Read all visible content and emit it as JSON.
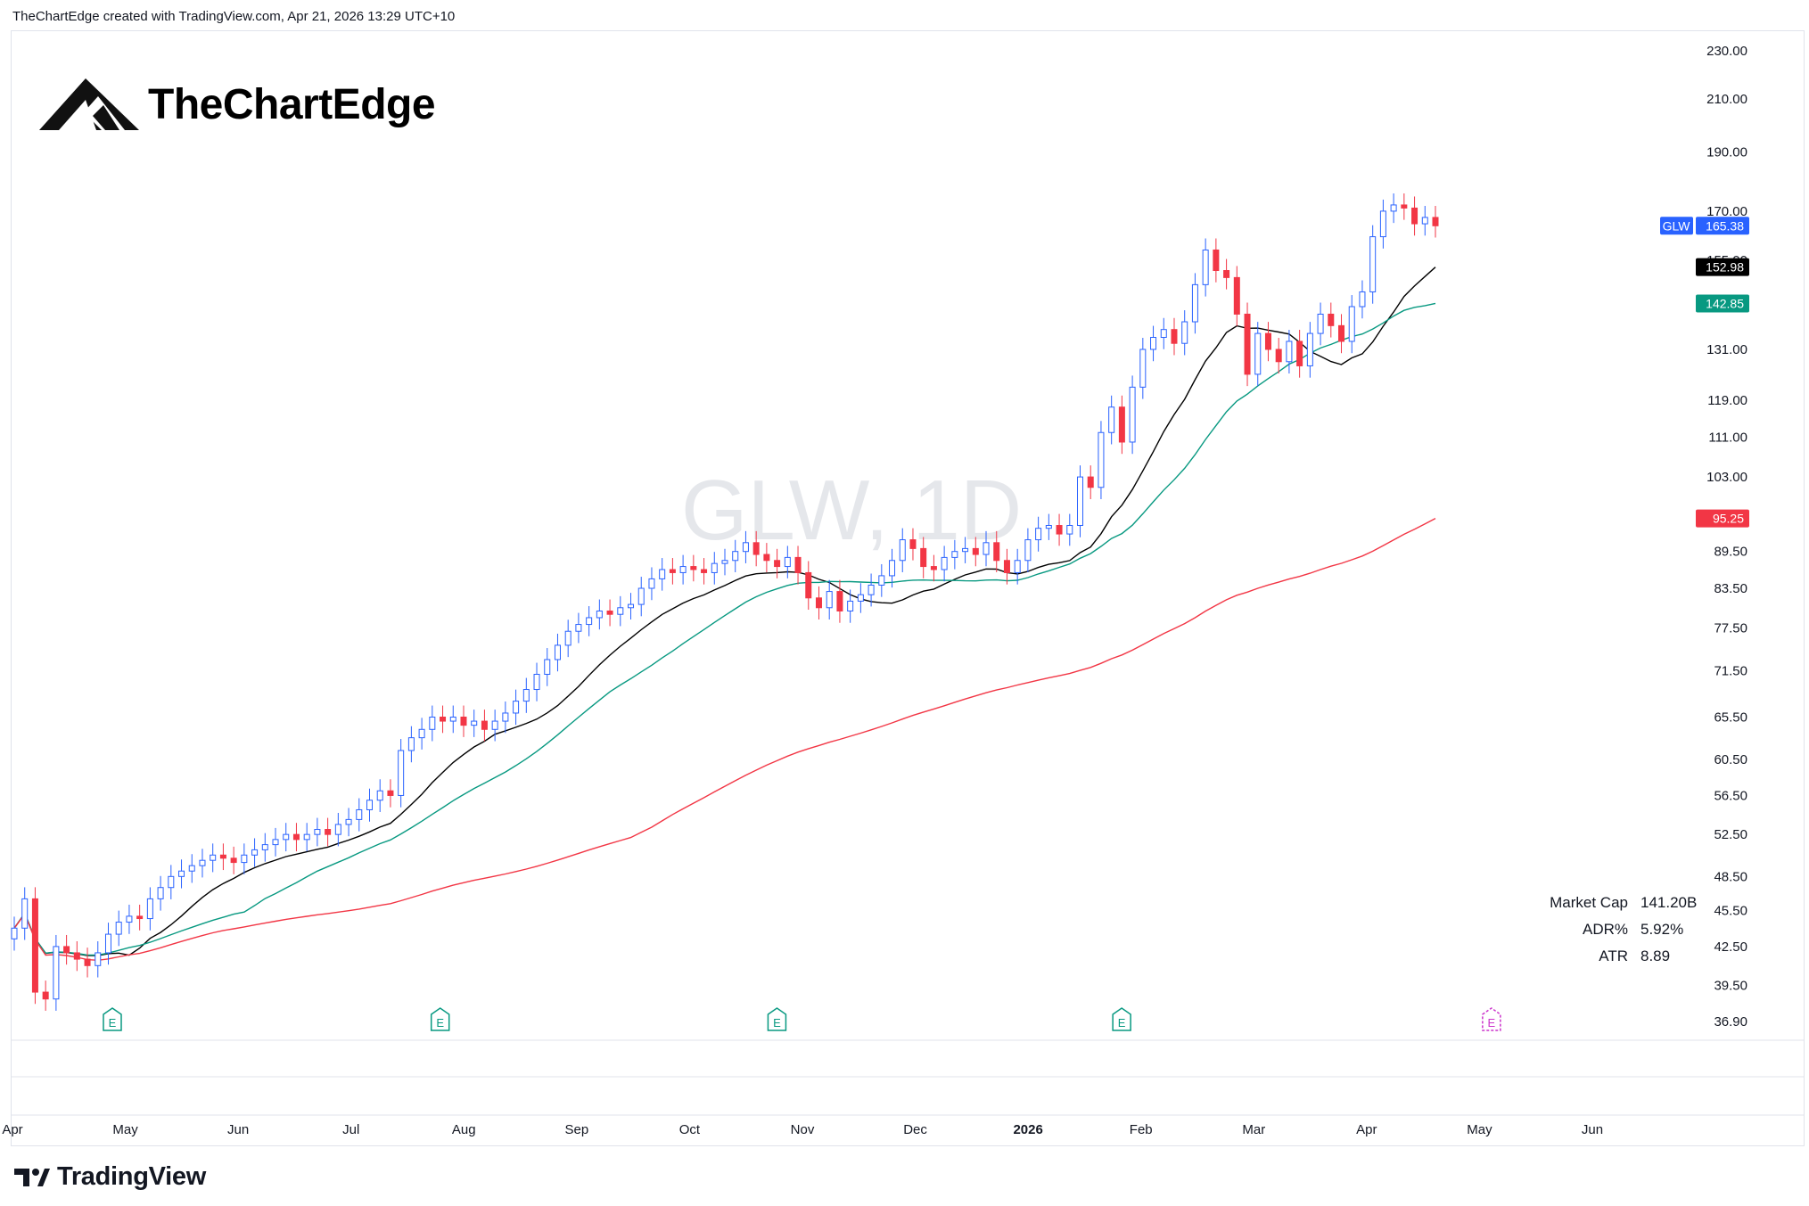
{
  "header": {
    "attribution": "TheChartEdge created with TradingView.com, Apr 21, 2026 13:29 UTC+10"
  },
  "brand": {
    "name": "TheChartEdge"
  },
  "footer": {
    "logo_text": "TradingView"
  },
  "watermark": "GLW, 1D",
  "stats": [
    {
      "label": "Market Cap",
      "value": "141.20B"
    },
    {
      "label": "ADR%",
      "value": "5.92%"
    },
    {
      "label": "ATR",
      "value": "8.89"
    }
  ],
  "colors": {
    "up": "#2962ff",
    "down": "#f23645",
    "ma_short": "#000000",
    "ma_mid": "#089981",
    "ma_long": "#f23645",
    "grid": "#e0e3eb",
    "earnings_past": "#089981",
    "earnings_future": "#cc33cc"
  },
  "chart_data": {
    "type": "candlestick",
    "symbol": "GLW",
    "interval": "1D",
    "y_scale": "log",
    "ylim": [
      36.9,
      230
    ],
    "y_ticks": [
      230.0,
      210.0,
      190.0,
      170.0,
      155.0,
      131.0,
      119.0,
      111.0,
      103.0,
      89.5,
      83.5,
      77.5,
      71.5,
      65.5,
      60.5,
      56.5,
      52.5,
      48.5,
      45.5,
      42.5,
      39.5,
      36.9
    ],
    "x_ticks": [
      "Apr",
      "May",
      "Jun",
      "Jul",
      "Aug",
      "Sep",
      "Oct",
      "Nov",
      "Dec",
      "2026",
      "Feb",
      "Mar",
      "Apr",
      "May",
      "Jun"
    ],
    "price_labels": [
      {
        "ticker": "GLW",
        "value": "165.38",
        "color": "#2962ff"
      },
      {
        "value": "152.98",
        "color": "#000000"
      },
      {
        "value": "142.85",
        "color": "#089981"
      },
      {
        "value": "95.25",
        "color": "#f23645"
      }
    ],
    "price_series": [
      [
        "Apr",
        44.0
      ],
      [
        "Apr",
        46.5
      ],
      [
        "Apr",
        39.0
      ],
      [
        "Apr",
        38.5
      ],
      [
        "Apr",
        42.5
      ],
      [
        "Apr",
        42.0
      ],
      [
        "Apr",
        41.5
      ],
      [
        "Apr",
        41.0
      ],
      [
        "May",
        42.0
      ],
      [
        "May",
        43.5
      ],
      [
        "May",
        44.5
      ],
      [
        "May",
        45.0
      ],
      [
        "May",
        44.8
      ],
      [
        "May",
        46.5
      ],
      [
        "May",
        47.5
      ],
      [
        "May",
        48.5
      ],
      [
        "May",
        49.0
      ],
      [
        "May",
        49.5
      ],
      [
        "Jun",
        50.0
      ],
      [
        "Jun",
        50.5
      ],
      [
        "Jun",
        50.2
      ],
      [
        "Jun",
        49.8
      ],
      [
        "Jun",
        50.5
      ],
      [
        "Jun",
        51.0
      ],
      [
        "Jun",
        51.5
      ],
      [
        "Jun",
        52.0
      ],
      [
        "Jun",
        52.5
      ],
      [
        "Jun",
        52.0
      ],
      [
        "Jul",
        52.5
      ],
      [
        "Jul",
        53.0
      ],
      [
        "Jul",
        52.5
      ],
      [
        "Jul",
        53.5
      ],
      [
        "Jul",
        54.0
      ],
      [
        "Jul",
        55.0
      ],
      [
        "Jul",
        56.0
      ],
      [
        "Jul",
        57.0
      ],
      [
        "Jul",
        56.5
      ],
      [
        "Aug",
        61.5
      ],
      [
        "Aug",
        63.0
      ],
      [
        "Aug",
        64.0
      ],
      [
        "Aug",
        65.5
      ],
      [
        "Aug",
        65.0
      ],
      [
        "Aug",
        65.5
      ],
      [
        "Aug",
        64.5
      ],
      [
        "Aug",
        65.0
      ],
      [
        "Aug",
        64.0
      ],
      [
        "Aug",
        65.0
      ],
      [
        "Aug",
        66.0
      ],
      [
        "Aug",
        67.5
      ],
      [
        "Sep",
        69.0
      ],
      [
        "Sep",
        71.0
      ],
      [
        "Sep",
        73.0
      ],
      [
        "Sep",
        75.0
      ],
      [
        "Sep",
        77.0
      ],
      [
        "Sep",
        78.0
      ],
      [
        "Sep",
        79.0
      ],
      [
        "Sep",
        80.0
      ],
      [
        "Sep",
        79.5
      ],
      [
        "Sep",
        80.5
      ],
      [
        "Sep",
        81.0
      ],
      [
        "Sep",
        83.5
      ],
      [
        "Oct",
        85.0
      ],
      [
        "Oct",
        86.5
      ],
      [
        "Oct",
        86.0
      ],
      [
        "Oct",
        87.0
      ],
      [
        "Oct",
        86.5
      ],
      [
        "Oct",
        86.0
      ],
      [
        "Oct",
        87.5
      ],
      [
        "Oct",
        88.0
      ],
      [
        "Oct",
        89.5
      ],
      [
        "Oct",
        91.0
      ],
      [
        "Oct",
        89.0
      ],
      [
        "Nov",
        88.0
      ],
      [
        "Nov",
        87.0
      ],
      [
        "Nov",
        88.5
      ],
      [
        "Nov",
        86.0
      ],
      [
        "Nov",
        82.0
      ],
      [
        "Nov",
        80.5
      ],
      [
        "Nov",
        83.0
      ],
      [
        "Nov",
        80.0
      ],
      [
        "Nov",
        81.5
      ],
      [
        "Dec",
        82.5
      ],
      [
        "Dec",
        84.0
      ],
      [
        "Dec",
        85.5
      ],
      [
        "Dec",
        88.0
      ],
      [
        "Dec",
        91.5
      ],
      [
        "Dec",
        90.0
      ],
      [
        "Dec",
        87.0
      ],
      [
        "Dec",
        86.5
      ],
      [
        "Dec",
        88.5
      ],
      [
        "Dec",
        89.5
      ],
      [
        "Dec",
        90.0
      ],
      [
        "2026",
        89.0
      ],
      [
        "2026",
        91.0
      ],
      [
        "2026",
        88.0
      ],
      [
        "2026",
        86.0
      ],
      [
        "2026",
        88.0
      ],
      [
        "2026",
        91.5
      ],
      [
        "2026",
        93.5
      ],
      [
        "2026",
        94.0
      ],
      [
        "2026",
        92.5
      ],
      [
        "2026",
        94.0
      ],
      [
        "Feb",
        103.0
      ],
      [
        "Feb",
        101.0
      ],
      [
        "Feb",
        112.0
      ],
      [
        "Feb",
        117.5
      ],
      [
        "Feb",
        110.0
      ],
      [
        "Feb",
        122.0
      ],
      [
        "Feb",
        131.0
      ],
      [
        "Feb",
        134.0
      ],
      [
        "Feb",
        136.0
      ],
      [
        "Feb",
        132.5
      ],
      [
        "Feb",
        138.0
      ],
      [
        "Feb",
        148.0
      ],
      [
        "Mar",
        158.0
      ],
      [
        "Mar",
        152.0
      ],
      [
        "Mar",
        150.0
      ],
      [
        "Mar",
        140.0
      ],
      [
        "Mar",
        125.0
      ],
      [
        "Mar",
        135.0
      ],
      [
        "Mar",
        131.0
      ],
      [
        "Mar",
        128.0
      ],
      [
        "Mar",
        133.0
      ],
      [
        "Mar",
        127.0
      ],
      [
        "Mar",
        135.0
      ],
      [
        "Mar",
        140.0
      ],
      [
        "Mar",
        137.0
      ],
      [
        "Apr",
        133.0
      ],
      [
        "Apr",
        142.0
      ],
      [
        "Apr",
        146.0
      ],
      [
        "Apr",
        162.0
      ],
      [
        "Apr",
        170.0
      ],
      [
        "Apr",
        172.0
      ],
      [
        "Apr",
        171.0
      ],
      [
        "Apr",
        166.0
      ],
      [
        "Apr",
        168.0
      ],
      [
        "Apr",
        165.38
      ]
    ],
    "earnings": [
      {
        "month": "Apr",
        "label": "E",
        "status": "past"
      },
      {
        "month": "Jul",
        "label": "E",
        "status": "past"
      },
      {
        "month": "Oct",
        "label": "E",
        "status": "past"
      },
      {
        "month": "2026",
        "label": "E",
        "status": "past"
      },
      {
        "month": "Apr",
        "label": "E",
        "status": "upcoming"
      }
    ],
    "moving_averages": [
      {
        "color": "#000000",
        "last": 152.98
      },
      {
        "color": "#089981",
        "last": 142.85
      },
      {
        "color": "#f23645",
        "last": 95.25
      }
    ],
    "grid": false,
    "legend": "none"
  }
}
